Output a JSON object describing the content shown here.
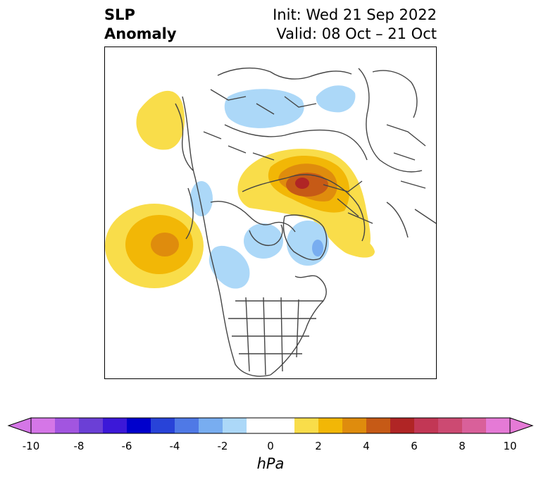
{
  "header": {
    "title_line1": "SLP",
    "title_line2": "Anomaly",
    "init_text": "Init: Wed 21 Sep 2022",
    "valid_text": "Valid: 08 Oct – 21 Oct"
  },
  "map": {
    "projection": "polar stereographic (North Pole)",
    "anomaly_features": [
      {
        "name": "positive-anomaly-alaska-coast",
        "level": 1
      },
      {
        "name": "positive-anomaly-north-pacific",
        "peak_level": 4
      },
      {
        "name": "positive-anomaly-siberia",
        "peak_level": 6
      },
      {
        "name": "negative-anomaly-hudson-bay",
        "level": -1
      },
      {
        "name": "negative-anomaly-greenland",
        "peak_level": -3
      },
      {
        "name": "negative-anomaly-russia-north",
        "level": -1
      }
    ]
  },
  "colorbar": {
    "unit": "hPa",
    "tick_labels": [
      "-10",
      "-8",
      "-6",
      "-4",
      "-2",
      "0",
      "2",
      "4",
      "6",
      "8",
      "10"
    ],
    "colors": [
      "#d576e7",
      "#a255e0",
      "#6b3fd6",
      "#3c18d8",
      "#0000cc",
      "#2843d8",
      "#4f79e6",
      "#78adf0",
      "#acd8f8",
      "#ffffff",
      "#ffffff",
      "#f9dd4a",
      "#f2b706",
      "#df8c0d",
      "#c65a16",
      "#b02525",
      "#c23755",
      "#cc4a72",
      "#d9609a",
      "#e57ad6"
    ]
  }
}
